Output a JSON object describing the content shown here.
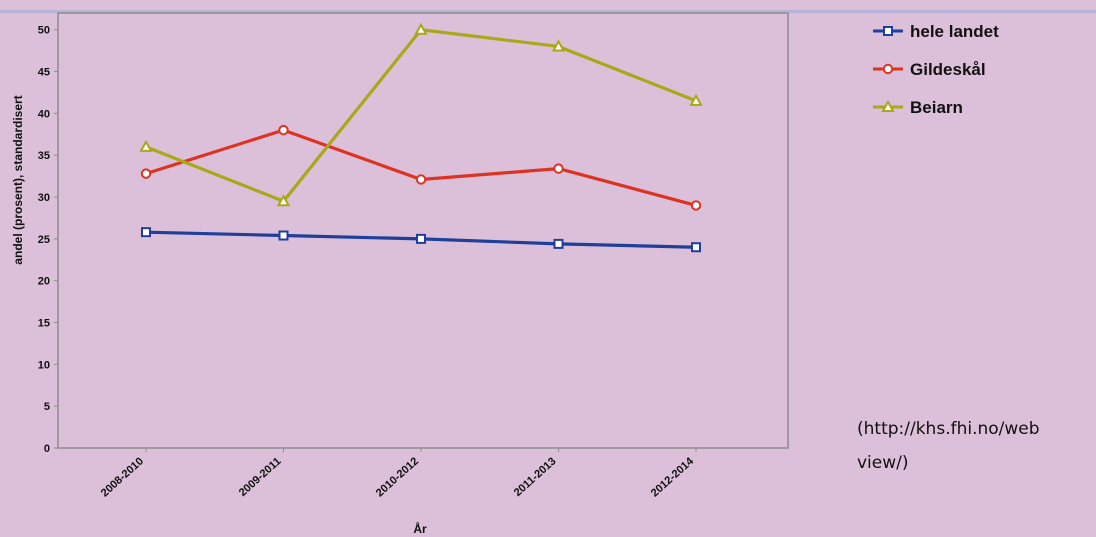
{
  "source_note": "(http://khs.fhi.no/webview/)",
  "source_note_lines": [
    "(http://khs.fhi.no/web",
    "view/)"
  ],
  "chart_data": {
    "type": "line",
    "title": "",
    "xlabel": "År",
    "ylabel": "andel (prosent), standardisert",
    "categories": [
      "2008-2010",
      "2009-2011",
      "2010-2012",
      "2011-2013",
      "2012-2014"
    ],
    "ylim": [
      0,
      52
    ],
    "yticks": [
      0,
      5,
      10,
      15,
      20,
      25,
      30,
      35,
      40,
      45,
      50
    ],
    "grid": false,
    "legend_position": "top-right, outside plot",
    "series": [
      {
        "name": "hele landet",
        "color": "#1f3f9a",
        "marker": "square",
        "values": [
          25.8,
          25.4,
          25.0,
          24.4,
          24.0
        ]
      },
      {
        "name": "Gildeskål",
        "color": "#dd3322",
        "marker": "circle",
        "values": [
          32.8,
          38.0,
          32.1,
          33.4,
          29.0
        ]
      },
      {
        "name": "Beiarn",
        "color": "#a8a818",
        "marker": "triangle",
        "values": [
          36.0,
          29.5,
          50.0,
          48.0,
          41.5
        ]
      }
    ]
  }
}
